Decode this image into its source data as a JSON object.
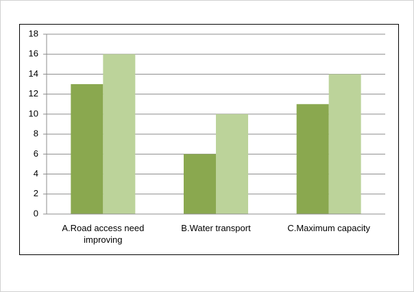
{
  "chart_data": {
    "type": "bar",
    "categories": [
      "A.Road access need improving",
      "B.Water transport",
      "C.Maximum capacity"
    ],
    "series": [
      {
        "color": "#8aa84f",
        "values": [
          13,
          6,
          11
        ]
      },
      {
        "color": "#bcd39a",
        "values": [
          16,
          10,
          14
        ]
      }
    ],
    "ylim": [
      0,
      18
    ],
    "yticks": [
      0,
      2,
      4,
      6,
      8,
      10,
      12,
      14,
      16,
      18
    ],
    "grid": true
  }
}
